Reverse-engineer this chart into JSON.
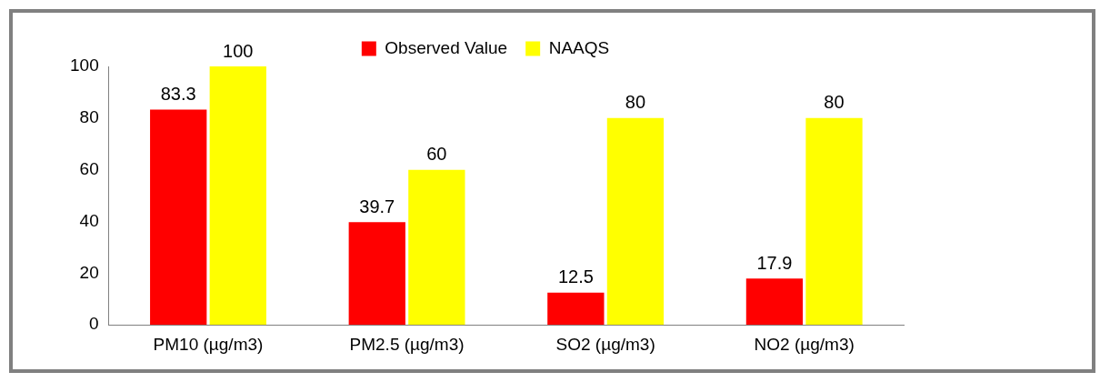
{
  "chart_data": {
    "type": "bar",
    "categories": [
      "PM10 (µg/m3)",
      "PM2.5 (µg/m3)",
      "SO2 (µg/m3)",
      "NO2 (µg/m3)"
    ],
    "series": [
      {
        "name": "Observed Value",
        "color": "#ff0000",
        "values": [
          83.3,
          39.7,
          12.5,
          17.9
        ]
      },
      {
        "name": "NAAQS",
        "color": "#ffff00",
        "values": [
          100,
          60,
          80,
          80
        ]
      }
    ],
    "ylim": [
      0,
      100
    ],
    "yticks": [
      0,
      20,
      40,
      60,
      80,
      100
    ],
    "data_labels": true,
    "legend": "top",
    "grid": false
  }
}
